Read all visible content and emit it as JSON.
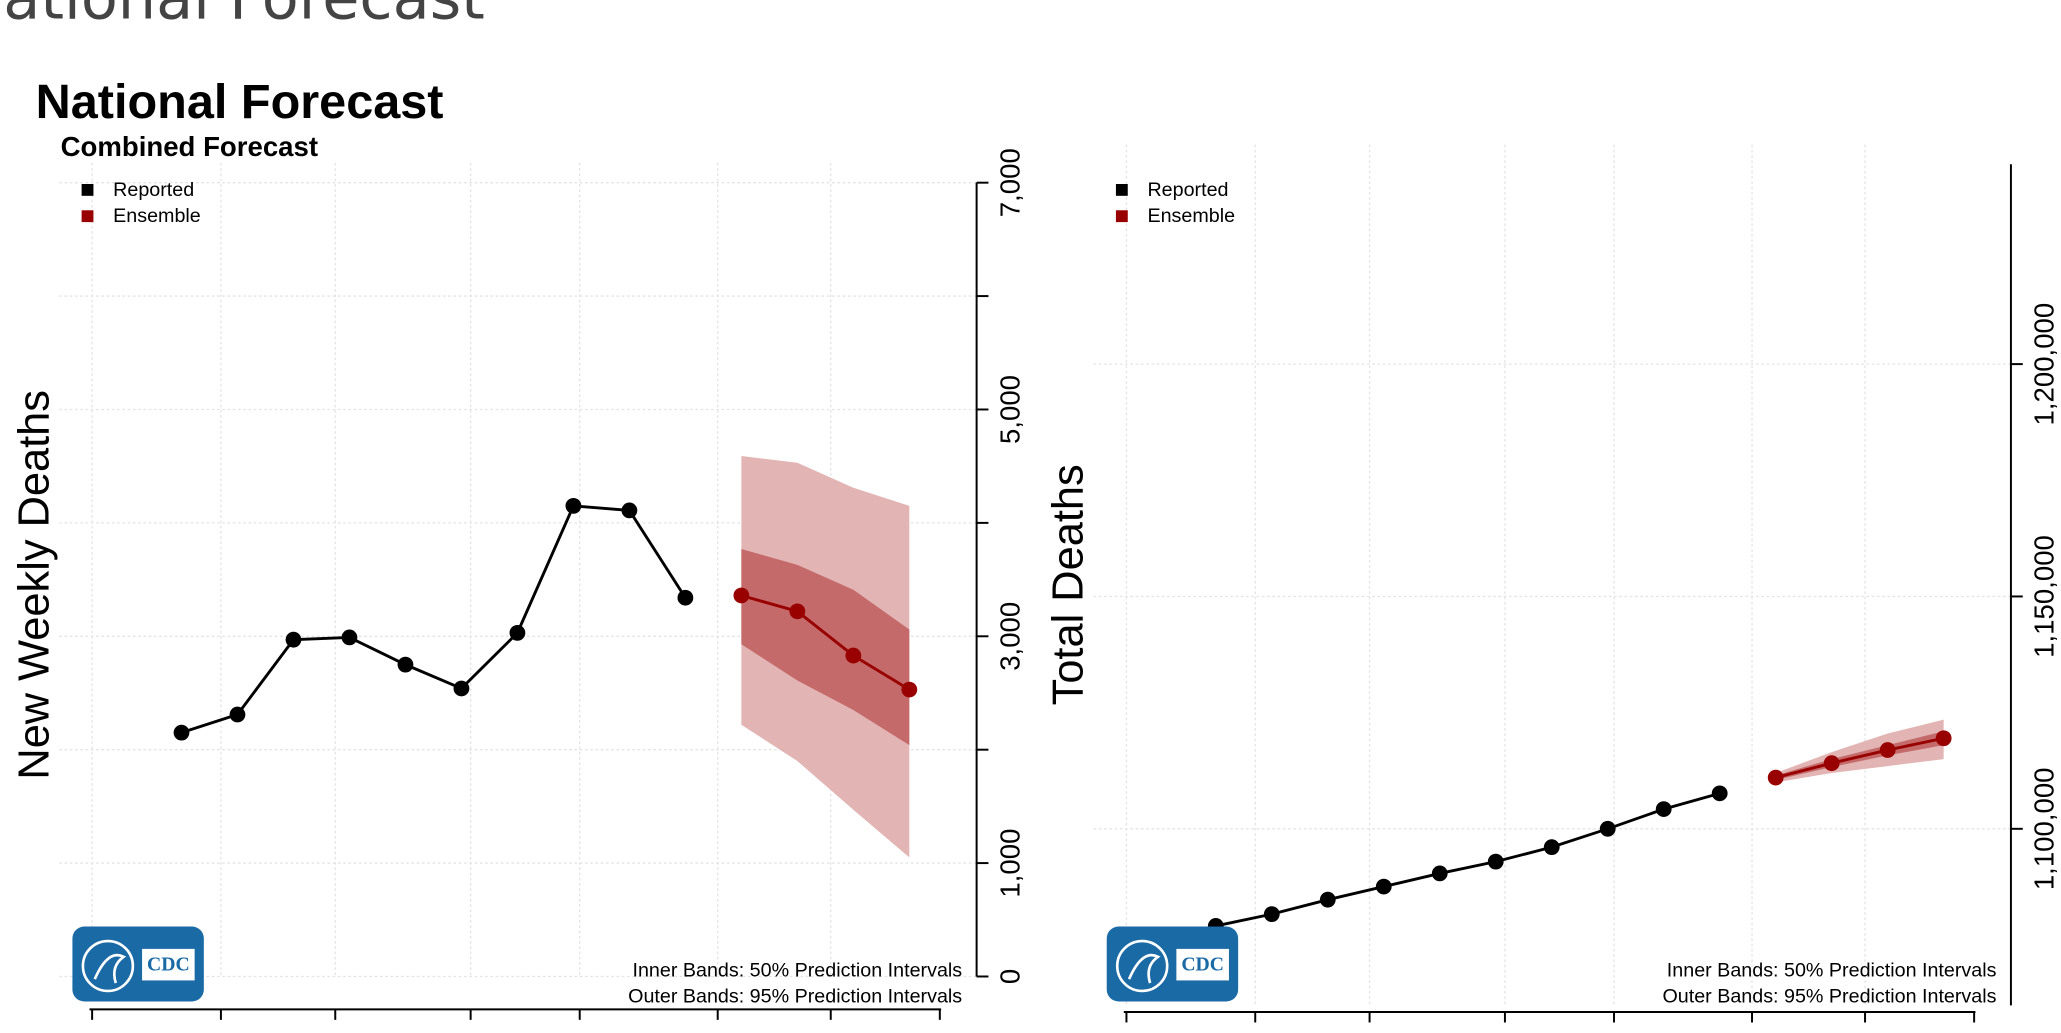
{
  "page_heading": "National Forecast",
  "logo": "CDC",
  "chart_data": [
    {
      "type": "line",
      "title": "National Forecast",
      "subtitle": "Combined Forecast",
      "y_label": "New Weekly Deaths",
      "categories": [
        null,
        null,
        null,
        null,
        null,
        null,
        null,
        null,
        null,
        null,
        null,
        null,
        null,
        null
      ],
      "series": [
        {
          "name": "Reported",
          "color": "#000000",
          "values": [
            2150,
            2310,
            2970,
            2990,
            2750,
            2540,
            3030,
            4150,
            4110,
            3340,
            null,
            null,
            null,
            null
          ]
        },
        {
          "name": "Ensemble",
          "color": "#990000",
          "values": [
            null,
            null,
            null,
            null,
            null,
            null,
            null,
            null,
            null,
            null,
            3360,
            3220,
            2830,
            2530
          ],
          "bands": [
            {
              "color": "#e2b4b4",
              "lower": [
                null,
                null,
                null,
                null,
                null,
                null,
                null,
                null,
                null,
                null,
                2220,
                1900,
                1470,
                1050
              ],
              "upper": [
                null,
                null,
                null,
                null,
                null,
                null,
                null,
                null,
                null,
                null,
                4590,
                4530,
                4310,
                4150
              ]
            },
            {
              "color": "#c56a6a",
              "lower": [
                null,
                null,
                null,
                null,
                null,
                null,
                null,
                null,
                null,
                null,
                2930,
                2610,
                2350,
                2040
              ],
              "upper": [
                null,
                null,
                null,
                null,
                null,
                null,
                null,
                null,
                null,
                null,
                3770,
                3630,
                3410,
                3060
              ]
            }
          ]
        }
      ],
      "ylim": [
        0,
        7000
      ],
      "yticks": [
        0,
        {
          "value": 1000,
          "label": "1,000"
        },
        {
          "value": 3000,
          "label": "3,000"
        },
        {
          "value": 5000,
          "label": "5,000"
        },
        {
          "value": 7000,
          "label": "7,000"
        }
      ],
      "minor_yticks": [
        2000,
        4000,
        6000
      ],
      "y_axis_side": "right",
      "grid": true,
      "legend": "top-left",
      "notes": [
        "Inner Bands: 50% Prediction Intervals",
        "Outer Bands: 95% Prediction Intervals"
      ]
    },
    {
      "type": "line",
      "y_label": "Total Deaths",
      "categories": [
        null,
        null,
        null,
        null,
        null,
        null,
        null,
        null,
        null,
        null,
        null,
        null,
        null,
        null
      ],
      "series": [
        {
          "name": "Reported",
          "color": "#000000",
          "values": [
            1079100,
            1081640,
            1084750,
            1087570,
            1090400,
            1092940,
            1096050,
            1100000,
            1104240,
            1107630,
            null,
            null,
            null,
            null
          ]
        },
        {
          "name": "Ensemble",
          "color": "#990000",
          "values": [
            null,
            null,
            null,
            null,
            null,
            null,
            null,
            null,
            null,
            null,
            1111020,
            1114120,
            1116950,
            1119490
          ],
          "bands": [
            {
              "color": "#e2b4b4",
              "lower": [
                null,
                null,
                null,
                null,
                null,
                null,
                null,
                null,
                null,
                null,
                1110000,
                1112000,
                1113500,
                1115000
              ],
              "upper": [
                null,
                null,
                null,
                null,
                null,
                null,
                null,
                null,
                null,
                null,
                1112000,
                1116500,
                1120500,
                1123500
              ]
            },
            {
              "color": "#c56a6a",
              "lower": [
                null,
                null,
                null,
                null,
                null,
                null,
                null,
                null,
                null,
                null,
                1110500,
                1113300,
                1115800,
                1118000
              ],
              "upper": [
                null,
                null,
                null,
                null,
                null,
                null,
                null,
                null,
                null,
                null,
                1111500,
                1115000,
                1118000,
                1121000
              ]
            }
          ]
        }
      ],
      "ylim": [
        1062000,
        1243000
      ],
      "yticks": [
        {
          "value": 1100000,
          "label": "1,100,000"
        },
        {
          "value": 1150000,
          "label": "1,150,000"
        },
        {
          "value": 1200000,
          "label": "1,200,000"
        }
      ],
      "y_axis_side": "right",
      "grid": true,
      "legend": "top-left",
      "notes": [
        "Inner Bands: 50% Prediction Intervals",
        "Outer Bands: 95% Prediction Intervals"
      ]
    }
  ]
}
